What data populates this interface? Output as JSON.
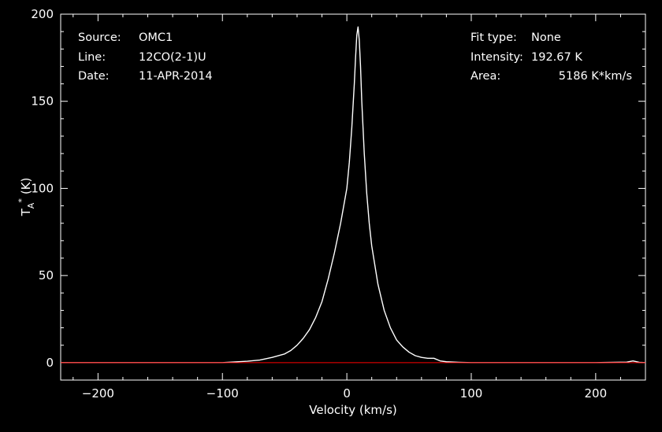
{
  "info_left": {
    "source_label": "Source:",
    "source_value": "OMC1",
    "line_label": "Line:",
    "line_value": "12CO(2-1)U",
    "date_label": "Date:",
    "date_value": "11-APR-2014"
  },
  "info_right": {
    "fit_label": "Fit type:",
    "fit_value": "None",
    "intensity_label": "Intensity:",
    "intensity_value": "192.67 K",
    "area_label": "Area:",
    "area_value": "5186 K*km/s"
  },
  "chart_data": {
    "type": "line",
    "xlabel": "Velocity (km/s)",
    "ylabel_base": "T",
    "ylabel_sub": "A",
    "ylabel_sup": "*",
    "ylabel_unit": "(K)",
    "xlim": [
      -230,
      240
    ],
    "ylim": [
      -10,
      200
    ],
    "xticks": [
      -200,
      -100,
      0,
      100,
      200
    ],
    "xtick_labels": [
      "−200",
      "−100",
      "0",
      "100",
      "200"
    ],
    "yticks": [
      0,
      50,
      100,
      150,
      200
    ],
    "ytick_labels": [
      "0",
      "50",
      "100",
      "150",
      "200"
    ],
    "series": [
      {
        "color": "#ffffff",
        "x": [
          -230,
          -150,
          -100,
          -80,
          -70,
          -60,
          -50,
          -45,
          -40,
          -35,
          -30,
          -25,
          -20,
          -15,
          -10,
          -5,
          0,
          2,
          4,
          6,
          7,
          8,
          9,
          10,
          11,
          12,
          14,
          16,
          18,
          20,
          25,
          30,
          35,
          40,
          45,
          50,
          55,
          60,
          65,
          70,
          75,
          80,
          90,
          100,
          150,
          200,
          225,
          230,
          235,
          240
        ],
        "y": [
          0,
          0,
          0,
          0.8,
          1.5,
          3,
          5,
          7,
          10,
          14,
          19,
          26,
          35,
          48,
          63,
          80,
          100,
          115,
          135,
          160,
          175,
          188,
          192.67,
          185,
          170,
          150,
          120,
          97,
          80,
          67,
          45,
          30,
          20,
          13,
          9,
          6,
          4,
          3,
          2.5,
          2.5,
          1,
          0.5,
          0.2,
          0,
          0,
          0,
          0.3,
          1,
          0.2,
          0
        ]
      },
      {
        "color": "#ff0000",
        "x": [
          -230,
          240
        ],
        "y": [
          0,
          0
        ]
      }
    ]
  }
}
